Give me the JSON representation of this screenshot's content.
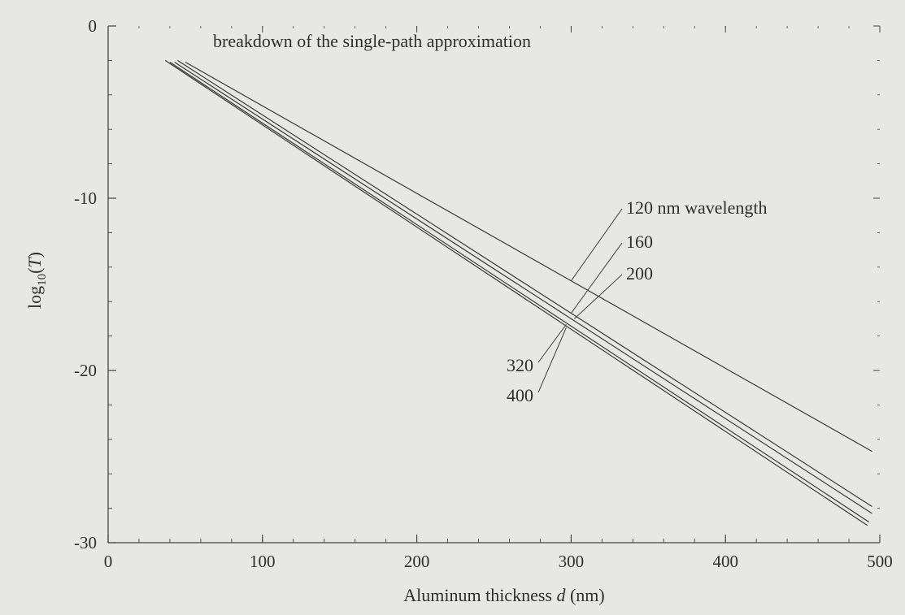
{
  "chart_data": {
    "type": "line",
    "title": "",
    "xlabel": "Aluminum thickness d (nm)",
    "xlabel_parts": {
      "pre": "Aluminum thickness ",
      "var": "d",
      "post": " (nm)"
    },
    "ylabel": "log10(T)",
    "ylabel_parts": {
      "pre": "log",
      "sub": "10",
      "post": "(",
      "var": "T",
      "end": ")"
    },
    "xlim": [
      0,
      500
    ],
    "ylim": [
      -30,
      0
    ],
    "x_ticks": [
      0,
      100,
      200,
      300,
      400,
      500
    ],
    "y_ticks": [
      0,
      -10,
      -20,
      -30
    ],
    "grid": false,
    "annotation": "breakdown of the single-path approximation",
    "series": [
      {
        "name": "120 nm wavelength",
        "label_side": "right",
        "x": [
          50,
          495
        ],
        "y": [
          -2.1,
          -24.7
        ]
      },
      {
        "name": "160",
        "label_side": "right",
        "x": [
          45,
          495
        ],
        "y": [
          -2.0,
          -27.9
        ]
      },
      {
        "name": "200",
        "label_side": "right",
        "x": [
          43,
          495
        ],
        "y": [
          -2.1,
          -28.3
        ]
      },
      {
        "name": "320",
        "label_side": "left",
        "x": [
          40,
          493
        ],
        "y": [
          -2.1,
          -28.8
        ]
      },
      {
        "name": "400",
        "label_side": "left",
        "x": [
          37,
          492
        ],
        "y": [
          -2.0,
          -29.0
        ]
      }
    ]
  }
}
